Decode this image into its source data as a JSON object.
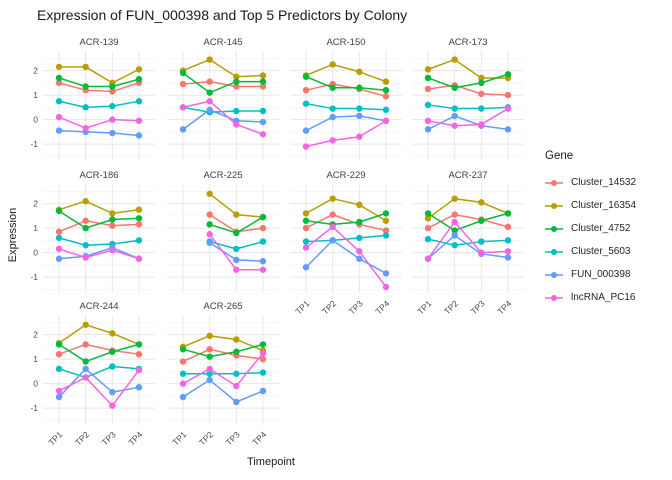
{
  "title": "Expression of FUN_000398 and Top 5 Predictors by Colony",
  "y_axis": {
    "label": "Expression",
    "tick_labels": [
      "2",
      "1",
      "0",
      "-1"
    ]
  },
  "x_axis": {
    "label": "Timepoint",
    "tick_labels": [
      "TP1",
      "TP2",
      "TP3",
      "TP4"
    ]
  },
  "legend": {
    "title": "Gene",
    "entries": [
      {
        "label": "Cluster_14532",
        "color": "#F8766D"
      },
      {
        "label": "Cluster_16354",
        "color": "#B79F00"
      },
      {
        "label": "Cluster_4752",
        "color": "#00BA38"
      },
      {
        "label": "Cluster_5603",
        "color": "#00BFC4"
      },
      {
        "label": "FUN_000398",
        "color": "#619CFF"
      },
      {
        "label": "lncRNA_PC16",
        "color": "#F564E3"
      }
    ]
  },
  "chart_data": {
    "type": "line",
    "title": "Expression of FUN_000398 and Top 5 Predictors by Colony",
    "xlabel": "Timepoint",
    "ylabel": "Expression",
    "x": [
      "TP1",
      "TP2",
      "TP3",
      "TP4"
    ],
    "y_ticks": [
      2,
      1,
      0,
      -1
    ],
    "ylim": [
      -1.65,
      2.8
    ],
    "grid": true,
    "legend_position": "right",
    "series_names": [
      "Cluster_14532",
      "Cluster_16354",
      "Cluster_4752",
      "Cluster_5603",
      "FUN_000398",
      "lncRNA_PC16"
    ],
    "series_colors": [
      "#F8766D",
      "#B79F00",
      "#00BA38",
      "#00BFC4",
      "#619CFF",
      "#F564E3"
    ],
    "facets": [
      {
        "colony": "ACR-139",
        "values": [
          [
            1.5,
            1.2,
            1.15,
            1.5
          ],
          [
            2.15,
            2.15,
            1.5,
            2.05
          ],
          [
            1.7,
            1.35,
            1.35,
            1.65
          ],
          [
            0.75,
            0.5,
            0.55,
            0.75
          ],
          [
            -0.45,
            -0.5,
            -0.55,
            -0.65
          ],
          [
            0.1,
            -0.35,
            0.0,
            -0.05
          ]
        ]
      },
      {
        "colony": "ACR-145",
        "values": [
          [
            1.45,
            1.55,
            1.35,
            1.35
          ],
          [
            2.0,
            2.45,
            1.75,
            1.8
          ],
          [
            1.9,
            1.1,
            1.55,
            1.55
          ],
          [
            0.5,
            0.3,
            0.35,
            0.35
          ],
          [
            -0.4,
            0.4,
            -0.05,
            -0.1
          ],
          [
            0.5,
            0.75,
            -0.2,
            -0.6
          ]
        ]
      },
      {
        "colony": "ACR-150",
        "values": [
          [
            1.2,
            1.45,
            1.25,
            0.95
          ],
          [
            1.8,
            2.25,
            1.95,
            1.55
          ],
          [
            1.75,
            1.3,
            1.3,
            1.2
          ],
          [
            0.65,
            0.45,
            0.45,
            0.4
          ],
          [
            -0.45,
            0.1,
            0.15,
            -0.05
          ],
          [
            -1.1,
            -0.85,
            -0.7,
            -0.05
          ]
        ]
      },
      {
        "colony": "ACR-173",
        "values": [
          [
            1.25,
            1.4,
            1.05,
            1.0
          ],
          [
            2.05,
            2.45,
            1.7,
            1.7
          ],
          [
            1.7,
            1.3,
            1.5,
            1.85
          ],
          [
            0.6,
            0.45,
            0.45,
            0.5
          ],
          [
            -0.4,
            0.15,
            -0.25,
            -0.4
          ],
          [
            -0.05,
            -0.25,
            -0.2,
            0.45
          ]
        ]
      },
      {
        "colony": "ACR-186",
        "values": [
          [
            0.85,
            1.3,
            1.1,
            1.15
          ],
          [
            1.75,
            2.1,
            1.6,
            1.75
          ],
          [
            1.7,
            1.0,
            1.35,
            1.4
          ],
          [
            0.6,
            0.3,
            0.35,
            0.5
          ],
          [
            -0.25,
            -0.15,
            0.2,
            -0.25
          ],
          [
            0.15,
            -0.2,
            0.1,
            -0.25
          ]
        ]
      },
      {
        "colony": "ACR-225",
        "values": [
          [
            null,
            1.55,
            0.85,
            1.0
          ],
          [
            null,
            2.4,
            1.55,
            1.45
          ],
          [
            null,
            1.15,
            0.8,
            1.45
          ],
          [
            null,
            0.45,
            0.15,
            0.45
          ],
          [
            null,
            0.4,
            -0.3,
            -0.35
          ],
          [
            null,
            0.75,
            -0.7,
            -0.7
          ]
        ]
      },
      {
        "colony": "ACR-229",
        "values": [
          [
            1.0,
            1.55,
            1.15,
            0.9
          ],
          [
            1.6,
            2.2,
            1.95,
            1.3
          ],
          [
            1.3,
            1.15,
            1.25,
            1.6
          ],
          [
            0.45,
            0.5,
            0.6,
            0.7
          ],
          [
            -0.6,
            0.5,
            -0.25,
            -0.85
          ],
          [
            0.2,
            1.05,
            0.05,
            -1.4
          ]
        ]
      },
      {
        "colony": "ACR-237",
        "values": [
          [
            1.0,
            1.55,
            1.35,
            1.05
          ],
          [
            1.4,
            2.2,
            2.05,
            1.6
          ],
          [
            1.6,
            0.9,
            1.3,
            1.6
          ],
          [
            0.55,
            0.3,
            0.45,
            0.5
          ],
          [
            -0.25,
            0.7,
            -0.05,
            -0.2
          ],
          [
            -0.25,
            1.25,
            0.0,
            0.05
          ]
        ]
      },
      {
        "colony": "ACR-244",
        "values": [
          [
            1.2,
            1.6,
            1.35,
            1.2
          ],
          [
            1.65,
            2.4,
            2.05,
            1.6
          ],
          [
            1.6,
            0.9,
            1.3,
            1.6
          ],
          [
            0.6,
            0.25,
            0.7,
            0.6
          ],
          [
            -0.55,
            0.6,
            -0.35,
            -0.15
          ],
          [
            -0.3,
            0.25,
            -0.9,
            0.55
          ]
        ]
      },
      {
        "colony": "ACR-265",
        "values": [
          [
            0.9,
            1.4,
            1.15,
            1.0
          ],
          [
            1.5,
            1.95,
            1.8,
            1.35
          ],
          [
            1.4,
            1.1,
            1.3,
            1.6
          ],
          [
            0.4,
            0.4,
            0.4,
            0.45
          ],
          [
            -0.55,
            0.15,
            -0.75,
            -0.3
          ],
          [
            0.0,
            0.6,
            -0.1,
            1.25
          ]
        ]
      }
    ]
  }
}
